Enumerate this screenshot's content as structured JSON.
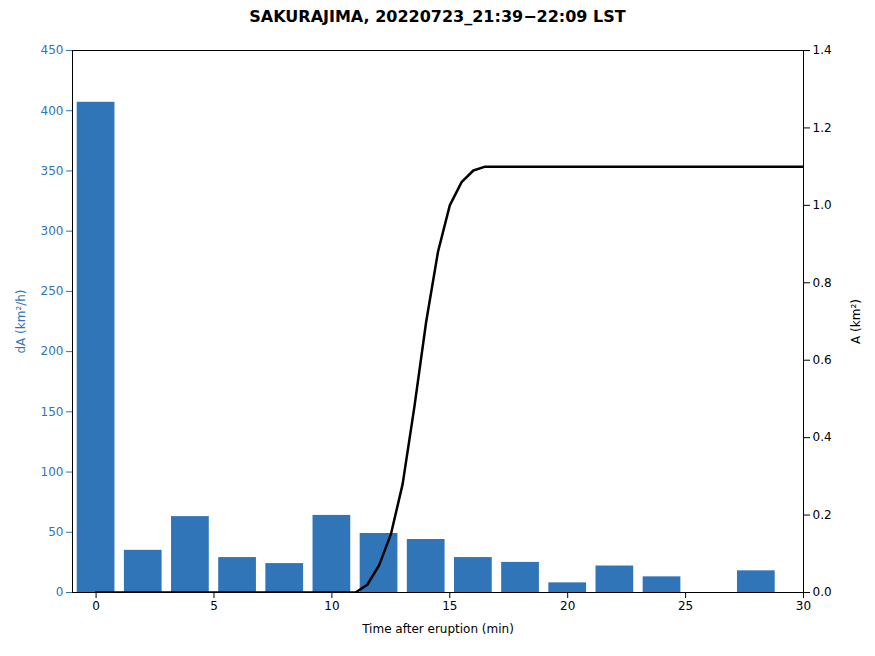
{
  "chart_data": {
    "type": "bar",
    "title": "SAKURAJIMA, 20220723_21:39−22:09 LST",
    "xlabel": "Time after eruption (min)",
    "ylabel": "dA (km²/h)",
    "y2label": "A (km²)",
    "xlim": [
      -1,
      30
    ],
    "xticks": [
      0,
      5,
      10,
      15,
      20,
      25,
      30
    ],
    "ylim": [
      0,
      450
    ],
    "yticks": [
      0,
      50,
      100,
      150,
      200,
      250,
      300,
      350,
      400,
      450
    ],
    "y2lim": [
      0,
      1.4
    ],
    "y2ticks": [
      {
        "value": 0,
        "label": "0.0"
      },
      0.2,
      0.4,
      0.6,
      0.8,
      {
        "value": 1.0,
        "label": "1.0"
      },
      1.2,
      1.4
    ],
    "grid": false,
    "series": [
      {
        "type": "bar",
        "color": "#3075b8",
        "x": [
          0,
          2,
          4,
          6,
          8,
          10,
          12,
          14,
          16,
          18,
          20,
          22,
          24,
          26,
          28
        ],
        "values": [
          407,
          35,
          63,
          29,
          24,
          64,
          49,
          44,
          29,
          25,
          8,
          22,
          13,
          0,
          18
        ]
      },
      {
        "type": "line",
        "color": "#000000",
        "axis": "y2",
        "x": [
          0,
          1,
          2,
          3,
          4,
          5,
          6,
          7,
          8,
          9,
          10,
          10.5,
          11,
          11.5,
          12,
          12.5,
          13,
          13.5,
          14,
          14.5,
          15,
          15.5,
          16,
          16.5,
          17,
          17.5,
          18,
          19,
          20,
          21,
          22,
          23,
          24,
          25,
          26,
          27,
          28,
          29,
          30
        ],
        "values": [
          0.0,
          0.0,
          0.0,
          0.0,
          0.0,
          0.0,
          0.0,
          0.0,
          0.0,
          0.0,
          0.0,
          0.0,
          0.0,
          0.02,
          0.07,
          0.15,
          0.28,
          0.48,
          0.7,
          0.88,
          1.0,
          1.06,
          1.09,
          1.1,
          1.1,
          1.1,
          1.1,
          1.1,
          1.1,
          1.1,
          1.1,
          1.1,
          1.1,
          1.1,
          1.1,
          1.1,
          1.1,
          1.1,
          1.1
        ]
      }
    ]
  }
}
